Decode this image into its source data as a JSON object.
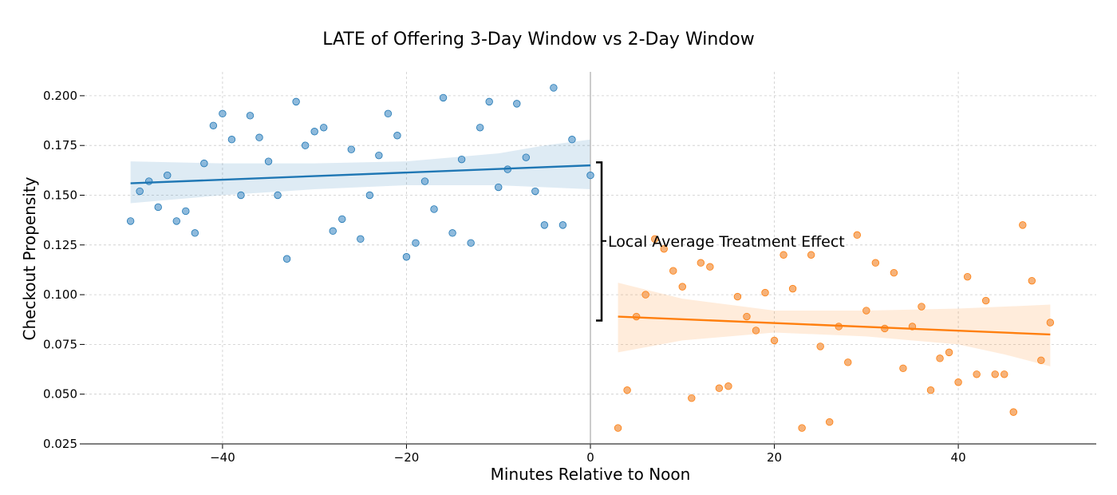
{
  "chart_data": {
    "type": "scatter",
    "title": "LATE of Offering 3-Day Window vs 2-Day Window",
    "xlabel": "Minutes Relative to Noon",
    "ylabel": "Checkout Propensity",
    "xlim": [
      -55,
      55
    ],
    "ylim": [
      0.025,
      0.212
    ],
    "x_ticks": [
      -40,
      -20,
      0,
      20,
      40
    ],
    "x_tick_labels": [
      "−40",
      "−20",
      "0",
      "20",
      "40"
    ],
    "y_ticks": [
      0.025,
      0.05,
      0.075,
      0.1,
      0.125,
      0.15,
      0.175,
      0.2
    ],
    "y_tick_labels": [
      "0.025",
      "0.050",
      "0.075",
      "0.100",
      "0.125",
      "0.150",
      "0.175",
      "0.200"
    ],
    "grid": true,
    "cutoff_x": 0,
    "series": [
      {
        "color": "#1f77b4",
        "fill_color": "#7aaed6",
        "points": [
          [
            -50,
            0.137
          ],
          [
            -49,
            0.152
          ],
          [
            -48,
            0.157
          ],
          [
            -47,
            0.144
          ],
          [
            -46,
            0.16
          ],
          [
            -45,
            0.137
          ],
          [
            -44,
            0.142
          ],
          [
            -43,
            0.131
          ],
          [
            -42,
            0.166
          ],
          [
            -41,
            0.185
          ],
          [
            -40,
            0.191
          ],
          [
            -39,
            0.178
          ],
          [
            -38,
            0.15
          ],
          [
            -37,
            0.19
          ],
          [
            -36,
            0.179
          ],
          [
            -35,
            0.167
          ],
          [
            -34,
            0.15
          ],
          [
            -33,
            0.118
          ],
          [
            -32,
            0.197
          ],
          [
            -31,
            0.175
          ],
          [
            -30,
            0.182
          ],
          [
            -29,
            0.184
          ],
          [
            -28,
            0.132
          ],
          [
            -27,
            0.138
          ],
          [
            -26,
            0.173
          ],
          [
            -25,
            0.128
          ],
          [
            -24,
            0.15
          ],
          [
            -23,
            0.17
          ],
          [
            -22,
            0.191
          ],
          [
            -21,
            0.18
          ],
          [
            -20,
            0.119
          ],
          [
            -19,
            0.126
          ],
          [
            -18,
            0.157
          ],
          [
            -17,
            0.143
          ],
          [
            -16,
            0.199
          ],
          [
            -15,
            0.131
          ],
          [
            -14,
            0.168
          ],
          [
            -13,
            0.126
          ],
          [
            -12,
            0.184
          ],
          [
            -11,
            0.197
          ],
          [
            -10,
            0.154
          ],
          [
            -9,
            0.163
          ],
          [
            -8,
            0.196
          ],
          [
            -7,
            0.169
          ],
          [
            -6,
            0.152
          ],
          [
            -5,
            0.135
          ],
          [
            -4,
            0.204
          ],
          [
            -3,
            0.135
          ],
          [
            -2,
            0.178
          ],
          [
            0,
            0.16
          ]
        ],
        "fit": {
          "x": [
            -50,
            0
          ],
          "y": [
            0.156,
            0.165
          ]
        },
        "ci": {
          "x": [
            -50,
            -40,
            -30,
            -20,
            -10,
            -5,
            0
          ],
          "lower": [
            0.146,
            0.15,
            0.153,
            0.155,
            0.155,
            0.154,
            0.153
          ],
          "upper": [
            0.167,
            0.166,
            0.166,
            0.167,
            0.171,
            0.175,
            0.178
          ]
        }
      },
      {
        "color": "#ff7f0e",
        "fill_color": "#f5a561",
        "points": [
          [
            3,
            0.033
          ],
          [
            4,
            0.052
          ],
          [
            5,
            0.089
          ],
          [
            6,
            0.1
          ],
          [
            7,
            0.128
          ],
          [
            8,
            0.123
          ],
          [
            9,
            0.112
          ],
          [
            10,
            0.104
          ],
          [
            11,
            0.048
          ],
          [
            12,
            0.116
          ],
          [
            13,
            0.114
          ],
          [
            14,
            0.053
          ],
          [
            15,
            0.054
          ],
          [
            16,
            0.099
          ],
          [
            17,
            0.089
          ],
          [
            18,
            0.082
          ],
          [
            19,
            0.101
          ],
          [
            20,
            0.077
          ],
          [
            21,
            0.12
          ],
          [
            22,
            0.103
          ],
          [
            23,
            0.033
          ],
          [
            24,
            0.12
          ],
          [
            25,
            0.074
          ],
          [
            26,
            0.036
          ],
          [
            27,
            0.084
          ],
          [
            28,
            0.066
          ],
          [
            29,
            0.13
          ],
          [
            30,
            0.092
          ],
          [
            31,
            0.116
          ],
          [
            32,
            0.083
          ],
          [
            33,
            0.111
          ],
          [
            34,
            0.063
          ],
          [
            35,
            0.084
          ],
          [
            36,
            0.094
          ],
          [
            37,
            0.052
          ],
          [
            38,
            0.068
          ],
          [
            39,
            0.071
          ],
          [
            40,
            0.056
          ],
          [
            41,
            0.109
          ],
          [
            42,
            0.06
          ],
          [
            43,
            0.097
          ],
          [
            44,
            0.06
          ],
          [
            45,
            0.06
          ],
          [
            46,
            0.041
          ],
          [
            47,
            0.135
          ],
          [
            48,
            0.107
          ],
          [
            49,
            0.067
          ],
          [
            50,
            0.086
          ]
        ],
        "fit": {
          "x": [
            3,
            50
          ],
          "y": [
            0.089,
            0.08
          ]
        },
        "ci": {
          "x": [
            3,
            10,
            20,
            30,
            40,
            45,
            50
          ],
          "lower": [
            0.071,
            0.077,
            0.081,
            0.079,
            0.075,
            0.07,
            0.064
          ],
          "upper": [
            0.106,
            0.098,
            0.092,
            0.092,
            0.093,
            0.094,
            0.095
          ]
        }
      }
    ],
    "annotation": {
      "text": "Local Average Treatment Effect",
      "y_top": 0.1665,
      "y_bottom": 0.087,
      "y_text": 0.127
    }
  }
}
